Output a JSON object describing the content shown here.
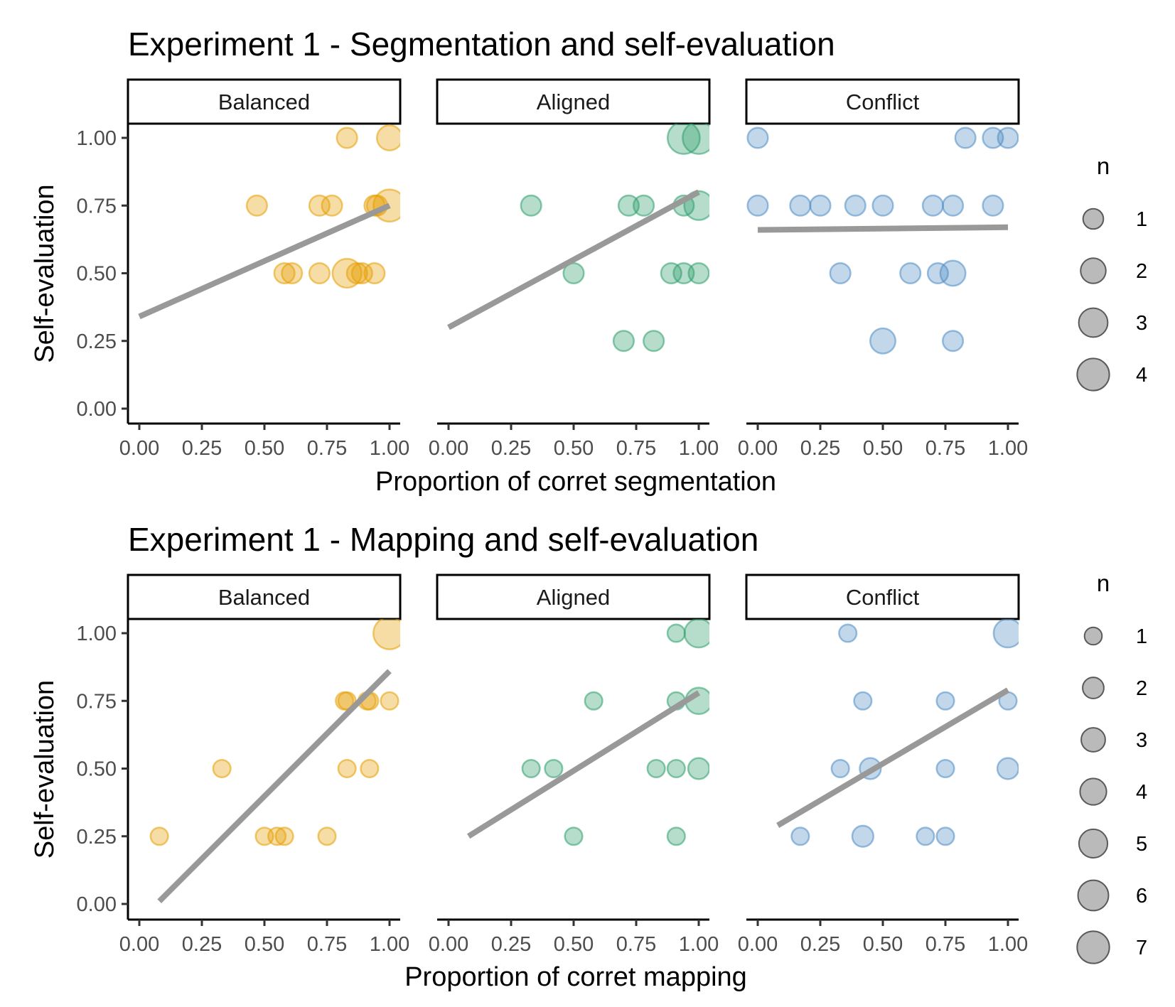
{
  "chart_data": [
    {
      "type": "scatter",
      "title": "Experiment 1 - Segmentation and self-evaluation",
      "xlabel": "Proportion of corret segmentation",
      "ylabel": "Self-evaluation",
      "xlim": [
        0,
        1
      ],
      "ylim": [
        0,
        1
      ],
      "x_ticks": [
        "0.00",
        "0.25",
        "0.50",
        "0.75",
        "1.00"
      ],
      "y_ticks": [
        "0.00",
        "0.25",
        "0.50",
        "0.75",
        "1.00"
      ],
      "grid": false,
      "size_legend": {
        "title": "n",
        "entries": [
          "1",
          "2",
          "3",
          "4"
        ],
        "values": [
          1,
          2,
          3,
          4
        ],
        "placement": "right"
      },
      "panels": [
        {
          "name": "Balanced",
          "color": "#E69F00",
          "points": [
            {
              "x": 0.83,
              "y": 1.0,
              "n": 1
            },
            {
              "x": 1.0,
              "y": 1.0,
              "n": 2
            },
            {
              "x": 0.47,
              "y": 0.75,
              "n": 1
            },
            {
              "x": 0.72,
              "y": 0.75,
              "n": 1
            },
            {
              "x": 0.77,
              "y": 0.75,
              "n": 1
            },
            {
              "x": 0.94,
              "y": 0.75,
              "n": 1
            },
            {
              "x": 0.95,
              "y": 0.75,
              "n": 1
            },
            {
              "x": 1.0,
              "y": 0.75,
              "n": 4
            },
            {
              "x": 0.58,
              "y": 0.5,
              "n": 1
            },
            {
              "x": 0.61,
              "y": 0.5,
              "n": 1
            },
            {
              "x": 0.72,
              "y": 0.5,
              "n": 1
            },
            {
              "x": 0.83,
              "y": 0.5,
              "n": 3
            },
            {
              "x": 0.87,
              "y": 0.5,
              "n": 1
            },
            {
              "x": 0.89,
              "y": 0.5,
              "n": 1
            },
            {
              "x": 0.94,
              "y": 0.5,
              "n": 1
            }
          ],
          "trend": {
            "x": [
              0.0,
              1.0
            ],
            "y": [
              0.34,
              0.75
            ]
          }
        },
        {
          "name": "Aligned",
          "color": "#2E9E6B",
          "points": [
            {
              "x": 0.94,
              "y": 1.0,
              "n": 4
            },
            {
              "x": 1.0,
              "y": 1.0,
              "n": 4
            },
            {
              "x": 0.33,
              "y": 0.75,
              "n": 1
            },
            {
              "x": 0.72,
              "y": 0.75,
              "n": 1
            },
            {
              "x": 0.78,
              "y": 0.75,
              "n": 1
            },
            {
              "x": 0.94,
              "y": 0.75,
              "n": 1
            },
            {
              "x": 1.0,
              "y": 0.75,
              "n": 3
            },
            {
              "x": 0.5,
              "y": 0.5,
              "n": 1
            },
            {
              "x": 0.89,
              "y": 0.5,
              "n": 1
            },
            {
              "x": 0.94,
              "y": 0.5,
              "n": 1
            },
            {
              "x": 1.0,
              "y": 0.5,
              "n": 1
            },
            {
              "x": 0.7,
              "y": 0.25,
              "n": 1
            },
            {
              "x": 0.82,
              "y": 0.25,
              "n": 1
            }
          ],
          "trend": {
            "x": [
              0.0,
              1.0
            ],
            "y": [
              0.3,
              0.8
            ]
          }
        },
        {
          "name": "Conflict",
          "color": "#4F8CC4",
          "points": [
            {
              "x": 0.0,
              "y": 1.0,
              "n": 1
            },
            {
              "x": 0.83,
              "y": 1.0,
              "n": 1
            },
            {
              "x": 0.94,
              "y": 1.0,
              "n": 1
            },
            {
              "x": 1.0,
              "y": 1.0,
              "n": 1
            },
            {
              "x": 0.0,
              "y": 0.75,
              "n": 1
            },
            {
              "x": 0.17,
              "y": 0.75,
              "n": 1
            },
            {
              "x": 0.25,
              "y": 0.75,
              "n": 1
            },
            {
              "x": 0.39,
              "y": 0.75,
              "n": 1
            },
            {
              "x": 0.5,
              "y": 0.75,
              "n": 1
            },
            {
              "x": 0.7,
              "y": 0.75,
              "n": 1
            },
            {
              "x": 0.78,
              "y": 0.75,
              "n": 1
            },
            {
              "x": 0.94,
              "y": 0.75,
              "n": 1
            },
            {
              "x": 0.33,
              "y": 0.5,
              "n": 1
            },
            {
              "x": 0.61,
              "y": 0.5,
              "n": 1
            },
            {
              "x": 0.72,
              "y": 0.5,
              "n": 1
            },
            {
              "x": 0.78,
              "y": 0.5,
              "n": 2
            },
            {
              "x": 0.5,
              "y": 0.25,
              "n": 2
            },
            {
              "x": 0.78,
              "y": 0.25,
              "n": 1
            }
          ],
          "trend": {
            "x": [
              0.0,
              1.0
            ],
            "y": [
              0.66,
              0.67
            ]
          }
        }
      ]
    },
    {
      "type": "scatter",
      "title": "Experiment 1 - Mapping and self-evaluation",
      "xlabel": "Proportion of corret mapping",
      "ylabel": "Self-evaluation",
      "xlim": [
        0,
        1
      ],
      "ylim": [
        0,
        1
      ],
      "x_ticks": [
        "0.00",
        "0.25",
        "0.50",
        "0.75",
        "1.00"
      ],
      "y_ticks": [
        "0.00",
        "0.25",
        "0.50",
        "0.75",
        "1.00"
      ],
      "grid": false,
      "size_legend": {
        "title": "n",
        "entries": [
          "1",
          "2",
          "3",
          "4",
          "5",
          "6",
          "7"
        ],
        "values": [
          1,
          2,
          3,
          4,
          5,
          6,
          7
        ],
        "placement": "right"
      },
      "panels": [
        {
          "name": "Balanced",
          "color": "#E69F00",
          "points": [
            {
              "x": 1.0,
              "y": 1.0,
              "n": 7
            },
            {
              "x": 0.82,
              "y": 0.75,
              "n": 1
            },
            {
              "x": 0.83,
              "y": 0.75,
              "n": 1
            },
            {
              "x": 0.91,
              "y": 0.75,
              "n": 1
            },
            {
              "x": 0.92,
              "y": 0.75,
              "n": 1
            },
            {
              "x": 1.0,
              "y": 0.75,
              "n": 1
            },
            {
              "x": 0.33,
              "y": 0.5,
              "n": 1
            },
            {
              "x": 0.83,
              "y": 0.5,
              "n": 1
            },
            {
              "x": 0.92,
              "y": 0.5,
              "n": 1
            },
            {
              "x": 0.08,
              "y": 0.25,
              "n": 1
            },
            {
              "x": 0.5,
              "y": 0.25,
              "n": 1
            },
            {
              "x": 0.55,
              "y": 0.25,
              "n": 1
            },
            {
              "x": 0.58,
              "y": 0.25,
              "n": 1
            },
            {
              "x": 0.75,
              "y": 0.25,
              "n": 1
            }
          ],
          "trend": {
            "x": [
              0.08,
              1.0
            ],
            "y": [
              0.01,
              0.86
            ]
          }
        },
        {
          "name": "Aligned",
          "color": "#2E9E6B",
          "points": [
            {
              "x": 0.91,
              "y": 1.0,
              "n": 1
            },
            {
              "x": 1.0,
              "y": 1.0,
              "n": 5
            },
            {
              "x": 0.58,
              "y": 0.75,
              "n": 1
            },
            {
              "x": 0.91,
              "y": 0.75,
              "n": 1
            },
            {
              "x": 1.0,
              "y": 0.75,
              "n": 4
            },
            {
              "x": 0.33,
              "y": 0.5,
              "n": 1
            },
            {
              "x": 0.42,
              "y": 0.5,
              "n": 1
            },
            {
              "x": 0.83,
              "y": 0.5,
              "n": 1
            },
            {
              "x": 0.91,
              "y": 0.5,
              "n": 1
            },
            {
              "x": 1.0,
              "y": 0.5,
              "n": 2
            },
            {
              "x": 0.5,
              "y": 0.25,
              "n": 1
            },
            {
              "x": 0.91,
              "y": 0.25,
              "n": 1
            }
          ],
          "trend": {
            "x": [
              0.08,
              1.0
            ],
            "y": [
              0.25,
              0.78
            ]
          }
        },
        {
          "name": "Conflict",
          "color": "#4F8CC4",
          "points": [
            {
              "x": 0.36,
              "y": 1.0,
              "n": 1
            },
            {
              "x": 1.0,
              "y": 1.0,
              "n": 5
            },
            {
              "x": 0.42,
              "y": 0.75,
              "n": 1
            },
            {
              "x": 0.75,
              "y": 0.75,
              "n": 1
            },
            {
              "x": 1.0,
              "y": 0.75,
              "n": 1
            },
            {
              "x": 0.33,
              "y": 0.5,
              "n": 1
            },
            {
              "x": 0.45,
              "y": 0.5,
              "n": 2
            },
            {
              "x": 0.75,
              "y": 0.5,
              "n": 1
            },
            {
              "x": 1.0,
              "y": 0.5,
              "n": 2
            },
            {
              "x": 0.17,
              "y": 0.25,
              "n": 1
            },
            {
              "x": 0.42,
              "y": 0.25,
              "n": 2
            },
            {
              "x": 0.67,
              "y": 0.25,
              "n": 1
            },
            {
              "x": 0.75,
              "y": 0.25,
              "n": 1
            }
          ],
          "trend": {
            "x": [
              0.08,
              1.0
            ],
            "y": [
              0.29,
              0.79
            ]
          }
        }
      ]
    }
  ]
}
